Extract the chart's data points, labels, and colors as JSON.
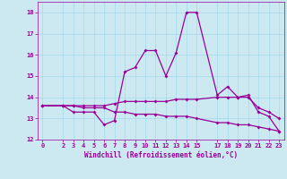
{
  "xlabel": "Windchill (Refroidissement éolien,°C)",
  "background_color": "#cce8f0",
  "line_color": "#990099",
  "grid_color": "#aaddee",
  "ylim": [
    12,
    18.5
  ],
  "xlim": [
    -0.5,
    23.5
  ],
  "yticks": [
    12,
    13,
    14,
    15,
    16,
    17,
    18
  ],
  "xticks": [
    0,
    2,
    3,
    4,
    5,
    6,
    7,
    8,
    9,
    10,
    11,
    12,
    13,
    14,
    15,
    17,
    18,
    19,
    20,
    21,
    22,
    23
  ],
  "line1_x": [
    0,
    2,
    3,
    4,
    5,
    6,
    7,
    8,
    9,
    10,
    11,
    12,
    13,
    14,
    15,
    17,
    18,
    19,
    20,
    21,
    22,
    23
  ],
  "line1_y": [
    13.6,
    13.6,
    13.3,
    13.3,
    13.3,
    12.7,
    12.9,
    15.2,
    15.4,
    16.2,
    16.2,
    15.0,
    16.1,
    18.0,
    18.0,
    14.1,
    14.5,
    14.0,
    14.1,
    13.3,
    13.1,
    12.4
  ],
  "line2_x": [
    0,
    2,
    3,
    4,
    5,
    6,
    7,
    8,
    9,
    10,
    11,
    12,
    13,
    14,
    15,
    17,
    18,
    19,
    20,
    21,
    22,
    23
  ],
  "line2_y": [
    13.6,
    13.6,
    13.6,
    13.6,
    13.6,
    13.6,
    13.7,
    13.8,
    13.8,
    13.8,
    13.8,
    13.8,
    13.9,
    13.9,
    13.9,
    14.0,
    14.0,
    14.0,
    14.0,
    13.5,
    13.3,
    13.0
  ],
  "line3_x": [
    0,
    2,
    3,
    4,
    5,
    6,
    7,
    8,
    9,
    10,
    11,
    12,
    13,
    14,
    15,
    17,
    18,
    19,
    20,
    21,
    22,
    23
  ],
  "line3_y": [
    13.6,
    13.6,
    13.6,
    13.5,
    13.5,
    13.5,
    13.3,
    13.3,
    13.2,
    13.2,
    13.2,
    13.1,
    13.1,
    13.1,
    13.0,
    12.8,
    12.8,
    12.7,
    12.7,
    12.6,
    12.5,
    12.4
  ]
}
